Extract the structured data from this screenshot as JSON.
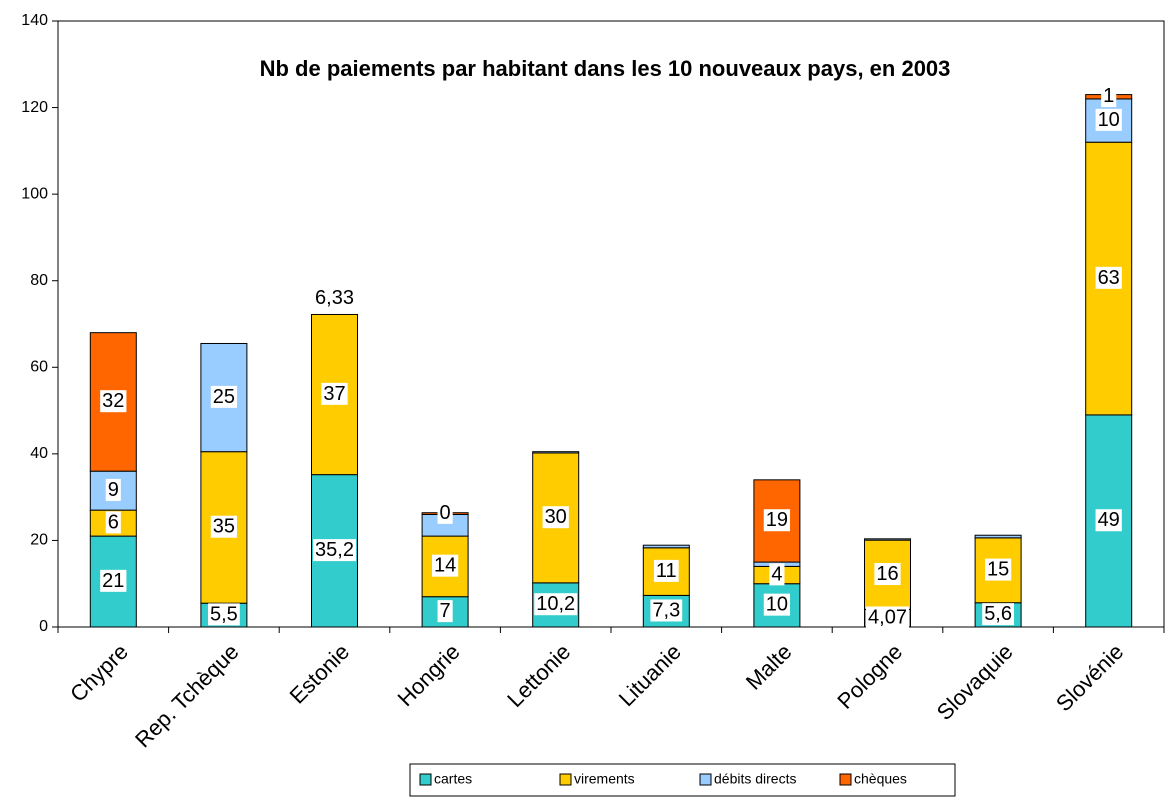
{
  "chart_data": {
    "type": "stacked_bar",
    "title": "Nb de paiements par habitant dans les 10 nouveaux pays, en 2003",
    "categories": [
      "Chypre",
      "Rep. Tchèque",
      "Estonie",
      "Hongrie",
      "Lettonie",
      "Lituanie",
      "Malte",
      "Pologne",
      "Slovaquie",
      "Slovénie"
    ],
    "series": [
      {
        "name": "cartes",
        "color": "#33CCCC",
        "values": [
          21,
          5.5,
          35.2,
          7,
          10.2,
          7.3,
          10,
          4.07,
          5.6,
          49
        ],
        "value_labels": [
          "21",
          "5,5",
          "35,2",
          "7",
          "10,2",
          "7,3",
          "10",
          "4,07",
          "5,6",
          "49"
        ]
      },
      {
        "name": "virements",
        "color": "#FFCC00",
        "values": [
          6,
          35,
          37,
          14,
          30,
          11,
          4,
          16,
          15,
          63
        ],
        "value_labels": [
          "6",
          "35",
          "37",
          "14",
          "30",
          "11",
          "4",
          "16",
          "15",
          "63"
        ]
      },
      {
        "name": "débits directs",
        "color": "#99CCFF",
        "values": [
          9,
          25,
          null,
          5,
          0.3,
          0.6,
          1,
          0.3,
          0.6,
          10
        ],
        "value_labels": [
          "9",
          "25",
          null,
          null,
          null,
          null,
          null,
          null,
          null,
          "10"
        ]
      },
      {
        "name": "chèques",
        "color": "#FF6600",
        "values": [
          32,
          null,
          null,
          0.4,
          null,
          null,
          19,
          null,
          null,
          1
        ],
        "value_labels": [
          "32",
          null,
          null,
          "0",
          null,
          null,
          "19",
          null,
          null,
          "1"
        ]
      }
    ],
    "annotations": [
      {
        "text": "6,33",
        "category": "Estonie"
      }
    ],
    "ylim": [
      0,
      140
    ],
    "yticks": [
      0,
      20,
      40,
      60,
      80,
      100,
      120,
      140
    ]
  }
}
